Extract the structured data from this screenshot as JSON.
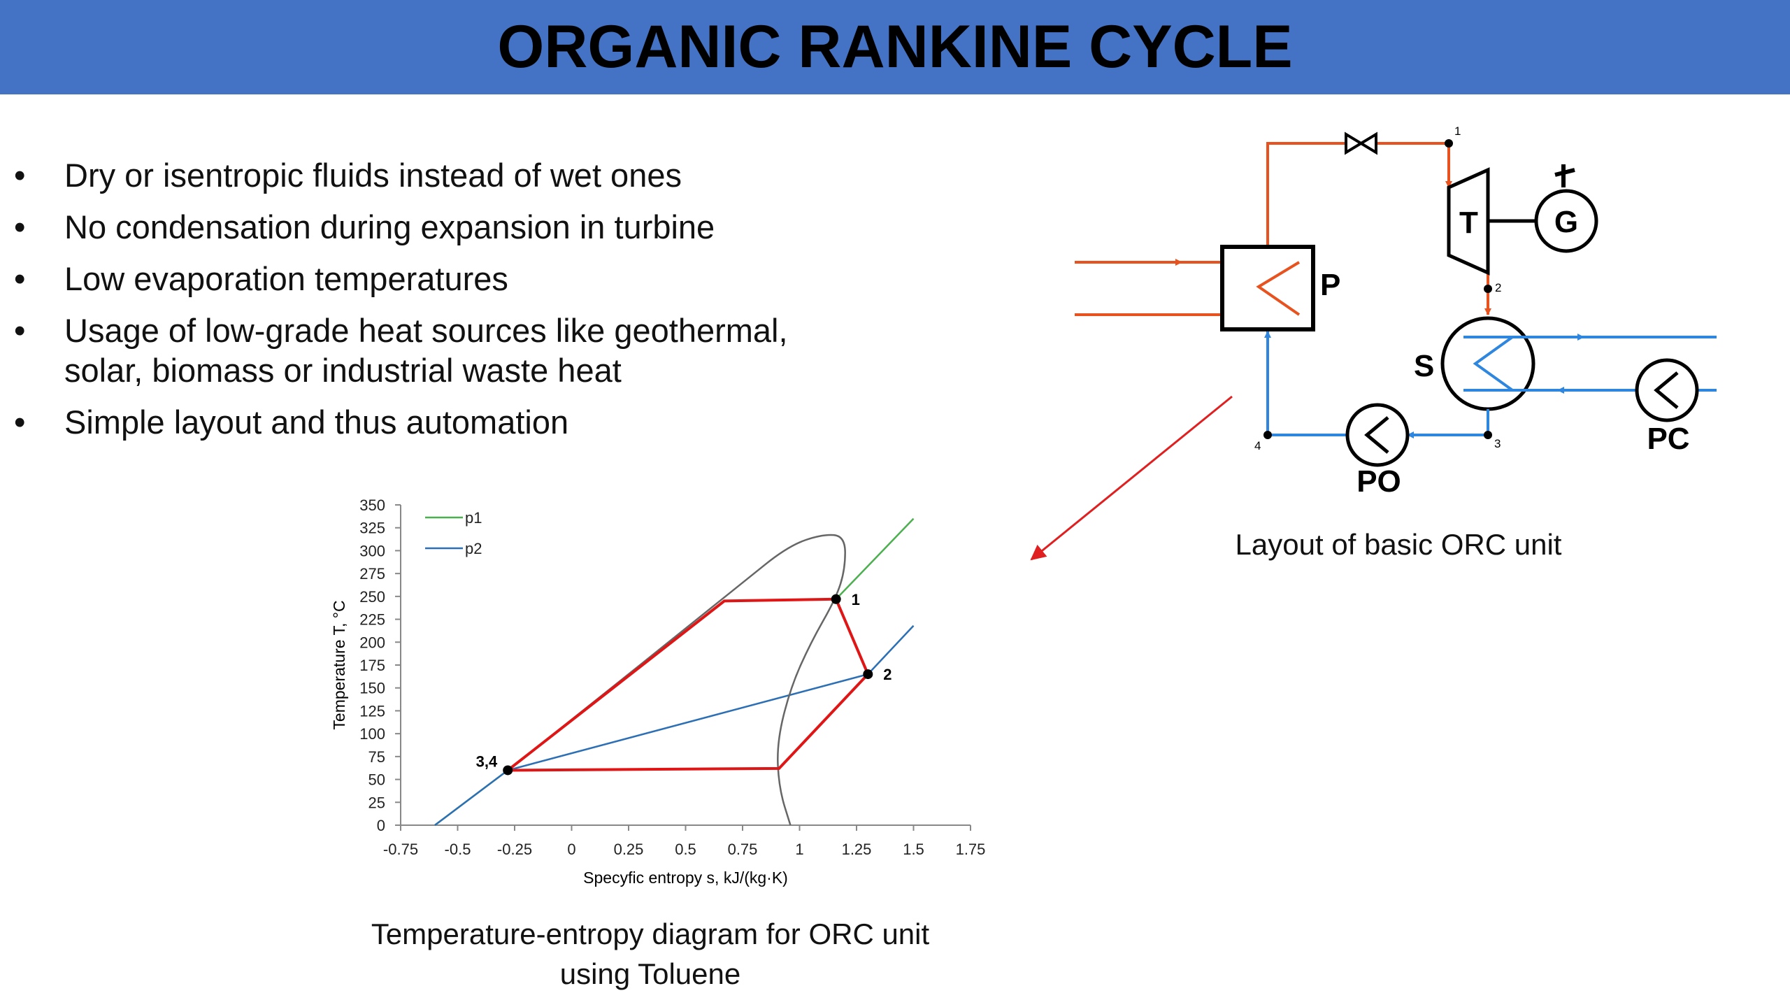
{
  "header": {
    "title": "ORGANIC RANKINE CYCLE"
  },
  "bullets": [
    {
      "marker": "•",
      "text": "Dry or isentropic fluids instead of wet ones"
    },
    {
      "marker": "•",
      "text": "No condensation during expansion in turbine"
    },
    {
      "marker": "•",
      "text": "Low evaporation temperatures"
    },
    {
      "marker": "•",
      "text": "Usage of low-grade heat sources like geothermal,",
      "text2": "solar, biomass or industrial waste heat"
    },
    {
      "marker": "•",
      "text": "Simple layout and thus automation"
    }
  ],
  "layout_diagram": {
    "caption": "Layout of basic ORC unit",
    "labels": {
      "evaporator": "P",
      "turbine": "T",
      "generator": "G",
      "condenser": "S",
      "feed_pump": "PO",
      "cooling_pump": "PC"
    },
    "nodes": {
      "n1": "1",
      "n2": "2",
      "n3": "3",
      "n4": "4"
    },
    "colors": {
      "hot": "#e8521f",
      "cold": "#2e86de",
      "outline": "#000000",
      "pointer": "#e02020"
    }
  },
  "chart_data": {
    "type": "line",
    "caption_line1": "Temperature-entropy diagram for ORC unit",
    "caption_line2": "using Toluene",
    "xlabel": "Specyfic entropy  s, kJ/(kg·K)",
    "ylabel": "Temperature    T, °C",
    "xlim": [
      -0.75,
      1.75
    ],
    "ylim": [
      0,
      350
    ],
    "xticks": [
      "-0.75",
      "-0.5",
      "-0.25",
      "0",
      "0.25",
      "0.5",
      "0.75",
      "1",
      "1.25",
      "1.5",
      "1.75"
    ],
    "yticks": [
      "0",
      "25",
      "50",
      "75",
      "100",
      "125",
      "150",
      "175",
      "200",
      "225",
      "250",
      "275",
      "300",
      "325",
      "350"
    ],
    "legend": [
      {
        "name": "p1",
        "color": "#4caf50"
      },
      {
        "name": "p2",
        "color": "#2c6fb5"
      }
    ],
    "series": [
      {
        "name": "p1",
        "color": "#4caf50",
        "x": [
          -0.6,
          -0.28,
          0.67,
          1.16,
          1.5
        ],
        "y": [
          0,
          60,
          245,
          247,
          335
        ]
      },
      {
        "name": "p2",
        "color": "#2c6fb5",
        "x": [
          -0.6,
          -0.28,
          1.3,
          1.5
        ],
        "y": [
          0,
          60,
          165,
          218
        ]
      },
      {
        "name": "saturation",
        "color": "#666666",
        "x": [
          -0.28,
          0.1,
          0.5,
          0.75,
          0.95,
          1.1,
          1.2,
          1.2,
          1.16,
          1.05,
          0.96,
          0.9,
          0.91,
          0.96
        ],
        "y": [
          60,
          135,
          215,
          265,
          305,
          318,
          316,
          280,
          248,
          200,
          150,
          90,
          40,
          0
        ]
      },
      {
        "name": "cycle",
        "color": "#e01515",
        "x": [
          -0.28,
          0.67,
          1.16,
          1.3,
          0.91,
          -0.28
        ],
        "y": [
          60,
          245,
          247,
          165,
          62,
          60
        ]
      }
    ],
    "points": [
      {
        "label": "1",
        "x": 1.16,
        "y": 247
      },
      {
        "label": "2",
        "x": 1.3,
        "y": 165
      },
      {
        "label": "3,4",
        "x": -0.28,
        "y": 60
      }
    ],
    "grid": false,
    "legend_position": "top-left"
  }
}
